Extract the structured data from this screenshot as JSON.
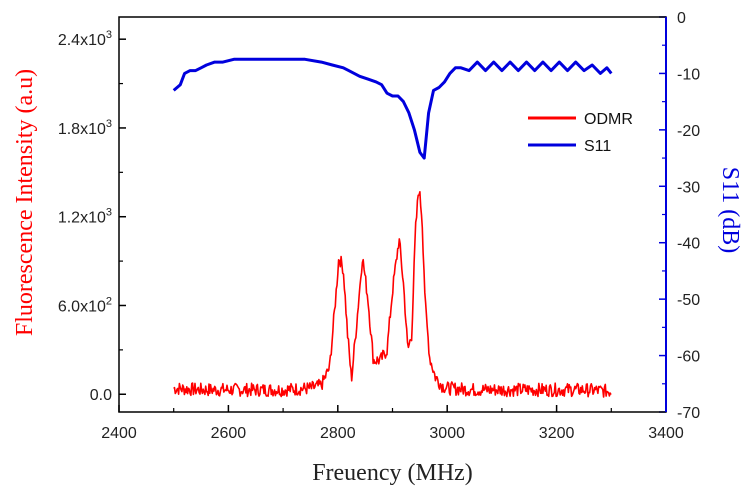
{
  "chart_data": {
    "type": "line",
    "title": "",
    "xlabel": "Freuency (MHz)",
    "ylabel_left": "Fluorescence Intensity (a.u)",
    "ylabel_right": "S11 (dB)",
    "xlim": [
      2400,
      3400
    ],
    "ylim_left": [
      -120,
      2550
    ],
    "ylim_right": [
      -70,
      0
    ],
    "x_ticks": [
      2400,
      2600,
      2800,
      3000,
      3200,
      3400
    ],
    "x_tick_labels": [
      "2400",
      "2600",
      "2800",
      "3000",
      "3200",
      "3400"
    ],
    "y_left_ticks": [
      0,
      600,
      1200,
      1800,
      2400
    ],
    "y_left_tick_labels": [
      {
        "mantissa": "0.0",
        "exp": ""
      },
      {
        "mantissa": "6.0x10",
        "exp": "2"
      },
      {
        "mantissa": "1.2x10",
        "exp": "3"
      },
      {
        "mantissa": "1.8x10",
        "exp": "3"
      },
      {
        "mantissa": "2.4x10",
        "exp": "3"
      }
    ],
    "y_right_ticks": [
      0,
      -10,
      -20,
      -30,
      -40,
      -50,
      -60,
      -70
    ],
    "y_right_tick_labels": [
      "0",
      "-10",
      "-20",
      "-30",
      "-40",
      "-50",
      "-60",
      "-70"
    ],
    "legend": {
      "position": "right-middle",
      "entries": [
        "ODMR",
        "S11"
      ]
    },
    "series": [
      {
        "name": "ODMR",
        "axis": "left",
        "color": "#ff0000",
        "x": [
          2500,
          2550,
          2600,
          2650,
          2700,
          2750,
          2770,
          2785,
          2795,
          2802,
          2810,
          2818,
          2825,
          2835,
          2845,
          2855,
          2865,
          2878,
          2890,
          2900,
          2912,
          2920,
          2928,
          2935,
          2942,
          2948,
          2954,
          2960,
          2968,
          2978,
          2990,
          3000,
          3050,
          3100,
          3150,
          3200,
          3250,
          3300
        ],
        "values": [
          40,
          30,
          30,
          30,
          30,
          40,
          60,
          180,
          600,
          930,
          850,
          400,
          100,
          500,
          930,
          650,
          230,
          230,
          300,
          700,
          1050,
          750,
          300,
          400,
          1100,
          1400,
          1200,
          600,
          250,
          120,
          60,
          40,
          30,
          30,
          30,
          30,
          30,
          20
        ]
      },
      {
        "name": "S11",
        "axis": "right",
        "color": "#0000dd",
        "x": [
          2500,
          2512,
          2520,
          2530,
          2540,
          2550,
          2560,
          2575,
          2590,
          2610,
          2630,
          2650,
          2680,
          2710,
          2740,
          2770,
          2790,
          2810,
          2820,
          2830,
          2840,
          2855,
          2870,
          2880,
          2890,
          2900,
          2910,
          2920,
          2930,
          2940,
          2950,
          2958,
          2966,
          2975,
          2985,
          2995,
          3005,
          3015,
          3025,
          3040,
          3055,
          3070,
          3085,
          3100,
          3115,
          3130,
          3145,
          3160,
          3175,
          3190,
          3205,
          3220,
          3235,
          3250,
          3265,
          3280,
          3292,
          3300
        ],
        "values": [
          -13,
          -12,
          -10,
          -9.5,
          -9.5,
          -9,
          -8.5,
          -8,
          -8,
          -7.5,
          -7.5,
          -7.5,
          -7.5,
          -7.5,
          -7.5,
          -8,
          -8.5,
          -9,
          -9.5,
          -10,
          -10.5,
          -11,
          -11.5,
          -12,
          -13.5,
          -14,
          -14,
          -15,
          -17,
          -20,
          -24,
          -25,
          -17,
          -13,
          -12.5,
          -11.5,
          -10,
          -9,
          -9,
          -9.5,
          -8,
          -9.5,
          -8,
          -9.5,
          -8,
          -9.5,
          -8,
          -9.5,
          -8,
          -9.5,
          -8,
          -9.5,
          -8,
          -9.5,
          -8.5,
          -10,
          -9,
          -10
        ]
      }
    ]
  }
}
